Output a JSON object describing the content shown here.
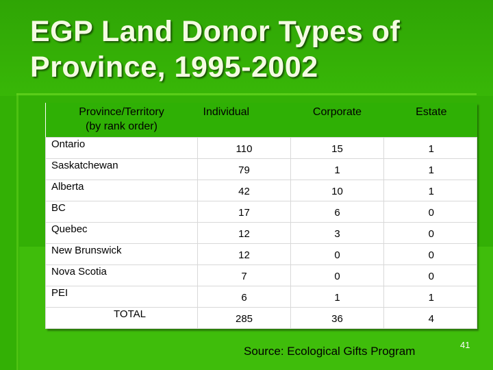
{
  "slide": {
    "title_line1": "EGP Land Donor Types of",
    "title_line2": "Province, 1995-2002",
    "source": "Source:  Ecological Gifts Program",
    "page_number": "41",
    "colors": {
      "background": "#33b005",
      "header_row": "#2fb005",
      "title_text": "#f4fbe2"
    }
  },
  "table": {
    "headers": {
      "c0_line1": "Province/Territory",
      "c0_line2": "(by rank order)",
      "c1": "Individual",
      "c2": "Corporate",
      "c3": "Estate"
    },
    "rows": [
      {
        "name": "Ontario",
        "individual": "110",
        "corporate": "15",
        "estate": "1"
      },
      {
        "name": "Saskatchewan",
        "individual": "79",
        "corporate": "1",
        "estate": "1"
      },
      {
        "name": "Alberta",
        "individual": "42",
        "corporate": "10",
        "estate": "1"
      },
      {
        "name": "BC",
        "individual": "17",
        "corporate": "6",
        "estate": "0"
      },
      {
        "name": "Quebec",
        "individual": "12",
        "corporate": "3",
        "estate": "0"
      },
      {
        "name": "New Brunswick",
        "individual": "12",
        "corporate": "0",
        "estate": "0"
      },
      {
        "name": "Nova Scotia",
        "individual": "7",
        "corporate": "0",
        "estate": "0"
      },
      {
        "name": "PEI",
        "individual": "6",
        "corporate": "1",
        "estate": "1"
      }
    ],
    "total": {
      "name": "TOTAL",
      "individual": "285",
      "corporate": "36",
      "estate": "4"
    }
  }
}
